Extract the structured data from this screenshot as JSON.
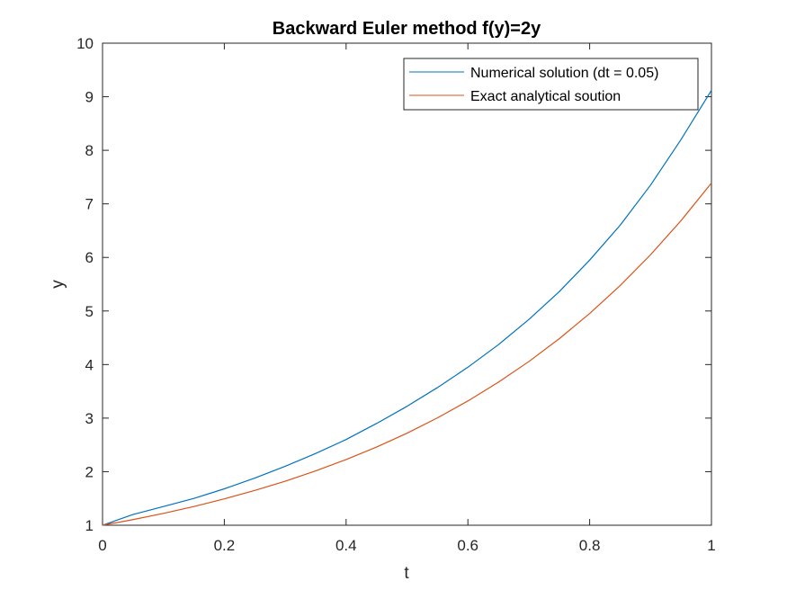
{
  "chart_data": {
    "type": "line",
    "title": "Backward Euler method f(y)=2y",
    "xlabel": "t",
    "ylabel": "y",
    "xlim": [
      0,
      1
    ],
    "ylim": [
      1,
      10
    ],
    "xticks": [
      "0",
      "0.2",
      "0.4",
      "0.6",
      "0.8",
      "1"
    ],
    "yticks": [
      "1",
      "2",
      "3",
      "4",
      "5",
      "6",
      "7",
      "8",
      "9",
      "10"
    ],
    "grid": false,
    "legend_position": "top-right",
    "series": [
      {
        "name": "Numerical solution (dt = 0.05)",
        "color": "#0072BD",
        "x": [
          0,
          0.05,
          0.1,
          0.15,
          0.2,
          0.25,
          0.3,
          0.35,
          0.4,
          0.45,
          0.5,
          0.55,
          0.6,
          0.65,
          0.7,
          0.75,
          0.8,
          0.85,
          0.9,
          0.95,
          1.0
        ],
        "y": [
          1,
          1.2,
          1.35,
          1.5,
          1.68,
          1.88,
          2.1,
          2.34,
          2.6,
          2.9,
          3.22,
          3.57,
          3.95,
          4.37,
          4.84,
          5.36,
          5.95,
          6.6,
          7.35,
          8.2,
          9.12
        ]
      },
      {
        "name": "Exact analytical soution",
        "color": "#D95319",
        "x": [
          0,
          0.05,
          0.1,
          0.15,
          0.2,
          0.25,
          0.3,
          0.35,
          0.4,
          0.45,
          0.5,
          0.55,
          0.6,
          0.65,
          0.7,
          0.75,
          0.8,
          0.85,
          0.9,
          0.95,
          1.0
        ],
        "y": [
          1,
          1.105,
          1.221,
          1.35,
          1.492,
          1.649,
          1.822,
          2.014,
          2.226,
          2.46,
          2.718,
          3.004,
          3.32,
          3.669,
          4.055,
          4.482,
          4.953,
          5.474,
          6.05,
          6.686,
          7.389
        ]
      }
    ]
  }
}
